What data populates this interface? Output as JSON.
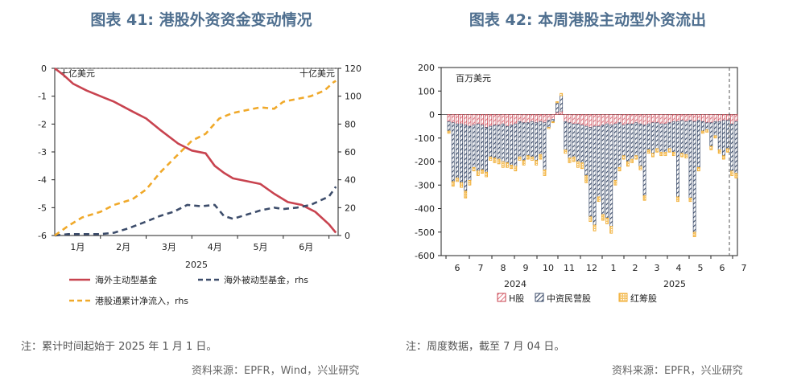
{
  "charts": {
    "left": {
      "title": "图表 41: 港股外资资金变动情况"
    },
    "right": {
      "title": "图表 42: 本周港股主动型外资流出"
    }
  },
  "notes": {
    "left_note": "注：累计时间起始于 2025 年 1 月 1 日。",
    "left_source": "资料来源：EPFR，Wind，兴业研究",
    "right_note": "注：周度数据，截至 7 月 04 日。",
    "right_source": "资料来源：EPFR，兴业研究"
  },
  "colors": {
    "red": "#c8434f",
    "navy": "#3d4d6b",
    "orange": "#f0a92a",
    "hatch_red": "#e07a86"
  },
  "chart_data": [
    {
      "type": "line",
      "unit_left": "十亿美元",
      "unit_right": "十亿美元",
      "ylim_left": [
        -6,
        0
      ],
      "yticks_left": [
        0,
        -1,
        -2,
        -3,
        -4,
        -5,
        -6
      ],
      "ylim_right": [
        0,
        120
      ],
      "yticks_right": [
        120,
        100,
        80,
        60,
        40,
        20,
        0
      ],
      "xlim": [
        0,
        6.2
      ],
      "month_ticks": [
        0.5,
        1.5,
        2.5,
        3.5,
        4.5,
        5.5
      ],
      "month_labels": [
        "1月",
        "2月",
        "3月",
        "4月",
        "5月",
        "6月"
      ],
      "year_label": "2025",
      "series": [
        {
          "name": "海外主动型基金",
          "axis": "left",
          "style": "solid",
          "x": [
            0,
            0.2,
            0.4,
            0.7,
            1.0,
            1.3,
            1.7,
            2.0,
            2.3,
            2.7,
            3.0,
            3.3,
            3.5,
            3.7,
            3.9,
            4.2,
            4.5,
            4.8,
            5.1,
            5.4,
            5.7,
            6.0,
            6.15
          ],
          "y": [
            0,
            -0.25,
            -0.55,
            -0.8,
            -1.0,
            -1.2,
            -1.55,
            -1.8,
            -2.2,
            -2.7,
            -2.95,
            -3.05,
            -3.5,
            -3.75,
            -3.95,
            -4.05,
            -4.15,
            -4.5,
            -4.8,
            -4.9,
            -5.15,
            -5.6,
            -5.9
          ]
        },
        {
          "name": "海外被动型基金，rhs",
          "axis": "right",
          "style": "dashed",
          "x": [
            0,
            0.3,
            0.6,
            1.0,
            1.3,
            1.6,
            2.0,
            2.3,
            2.6,
            2.9,
            3.2,
            3.5,
            3.7,
            3.9,
            4.2,
            4.5,
            4.8,
            5.0,
            5.3,
            5.6,
            6.0,
            6.15
          ],
          "y": [
            0,
            1,
            1,
            1,
            2,
            5,
            10,
            14,
            17,
            22,
            21,
            22,
            14,
            12,
            15,
            18,
            20,
            19,
            20,
            22,
            28,
            35
          ]
        },
        {
          "name": "港股通累计净流入，rhs",
          "axis": "right",
          "style": "dashed",
          "x": [
            0,
            0.3,
            0.6,
            1.0,
            1.3,
            1.7,
            2.0,
            2.3,
            2.6,
            3.0,
            3.3,
            3.6,
            3.9,
            4.2,
            4.5,
            4.8,
            5.0,
            5.3,
            5.6,
            5.9,
            6.1,
            6.15
          ],
          "y": [
            0,
            7,
            13,
            17,
            22,
            26,
            33,
            45,
            55,
            68,
            73,
            84,
            88,
            90,
            92,
            91,
            96,
            98,
            100,
            104,
            110,
            111
          ]
        }
      ]
    },
    {
      "type": "bar",
      "unit": "百万美元",
      "ylim": [
        -600,
        200
      ],
      "yticks": [
        200,
        100,
        0,
        -100,
        -200,
        -300,
        -400,
        -500,
        -600
      ],
      "month_labels": [
        "6",
        "7",
        "8",
        "9",
        "10",
        "11",
        "12",
        "1",
        "2",
        "3",
        "4",
        "5",
        "6",
        "7"
      ],
      "year_labels": [
        "2024",
        "2025"
      ],
      "series": [
        {
          "name": "H股",
          "values": [
            -30,
            -35,
            -40,
            -40,
            -45,
            -50,
            -45,
            -40,
            -45,
            -55,
            -50,
            -45,
            -45,
            -40,
            -50,
            -45,
            -40,
            -30,
            -35,
            -35,
            -30,
            -35,
            -30,
            -35,
            -25,
            -20,
            10,
            15,
            -30,
            -35,
            -40,
            -40,
            -45,
            -50,
            -55,
            -50,
            -50,
            -45,
            -40,
            -45,
            -40,
            -35,
            -45,
            -40,
            -40,
            -35,
            -40,
            -45,
            -40,
            -35,
            -35,
            -40,
            -40,
            -35,
            -30,
            -30,
            -25,
            -30,
            -25,
            -30,
            -25,
            -30,
            -35,
            -35,
            -30,
            -30,
            -25,
            -25,
            -40,
            -30
          ]
        },
        {
          "name": "中资民营股",
          "values": [
            -40,
            -250,
            -230,
            -250,
            -280,
            -230,
            -180,
            -200,
            -190,
            -190,
            -130,
            -140,
            -145,
            -160,
            -155,
            -170,
            -180,
            -150,
            -160,
            -140,
            -150,
            -160,
            -140,
            -200,
            -30,
            -10,
            40,
            65,
            -120,
            -150,
            -140,
            -160,
            -160,
            -210,
            -380,
            -420,
            -300,
            -380,
            -400,
            -430,
            -240,
            -190,
            -130,
            -160,
            -150,
            -140,
            -180,
            -300,
            -110,
            -130,
            -110,
            -120,
            -120,
            -110,
            -130,
            -320,
            -140,
            -140,
            -330,
            -470,
            -200,
            -40,
            -30,
            -100,
            -60,
            -120,
            -150,
            -120,
            -200,
            -220
          ]
        },
        {
          "name": "红筹股",
          "values": [
            -10,
            -20,
            -15,
            -20,
            -30,
            -20,
            -15,
            -20,
            -15,
            -20,
            -15,
            -20,
            -20,
            -25,
            -20,
            -15,
            -20,
            -15,
            -20,
            -15,
            -15,
            -20,
            -20,
            -25,
            -5,
            -5,
            5,
            10,
            -15,
            -20,
            -20,
            -25,
            -25,
            -30,
            -20,
            -25,
            -20,
            -25,
            -25,
            -30,
            -20,
            -15,
            -15,
            -20,
            -15,
            -15,
            -15,
            -20,
            -15,
            -15,
            -15,
            -15,
            -15,
            -15,
            -15,
            -20,
            -15,
            -15,
            -15,
            -20,
            -15,
            -10,
            -10,
            -15,
            -10,
            -15,
            -15,
            -15,
            -20,
            -20
          ]
        }
      ]
    }
  ]
}
